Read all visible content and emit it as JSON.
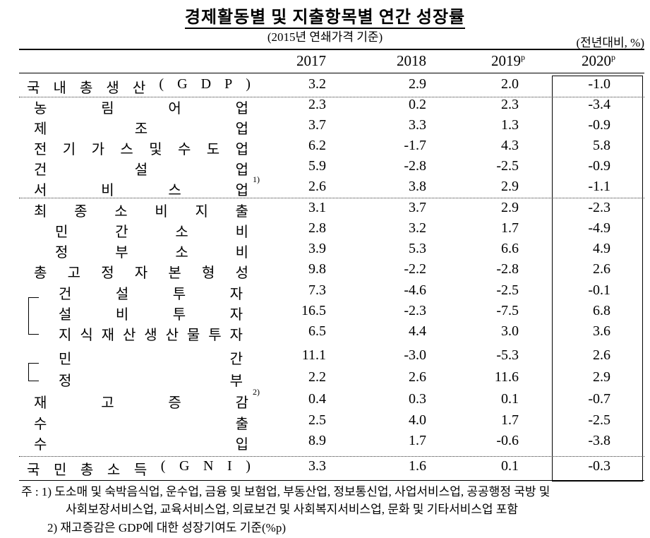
{
  "title": "경제활동별 및 지출항목별 연간 성장률",
  "subtitle": "(2015년 연쇄가격 기준)",
  "unit": "(전년대비, %)",
  "columns": [
    {
      "year": "2017",
      "mark": ""
    },
    {
      "year": "2018",
      "mark": ""
    },
    {
      "year": "2019",
      "mark": "p"
    },
    {
      "year": "2020",
      "mark": "p"
    }
  ],
  "rows": [
    {
      "label": "국내총생산(GDP)",
      "note": "",
      "values": [
        "3.2",
        "2.9",
        "2.0",
        "-1.0"
      ]
    },
    {
      "label": "농림어업",
      "note": "",
      "values": [
        "2.3",
        "0.2",
        "2.3",
        "-3.4"
      ]
    },
    {
      "label": "제조업",
      "note": "",
      "values": [
        "3.7",
        "3.3",
        "1.3",
        "-0.9"
      ]
    },
    {
      "label": "전기가스및수도업",
      "note": "",
      "values": [
        "6.2",
        "-1.7",
        "4.3",
        "5.8"
      ]
    },
    {
      "label": "건설업",
      "note": "",
      "values": [
        "5.9",
        "-2.8",
        "-2.5",
        "-0.9"
      ]
    },
    {
      "label": "서비스업",
      "note": "1)",
      "values": [
        "2.6",
        "3.8",
        "2.9",
        "-1.1"
      ]
    },
    {
      "label": "최종소비지출",
      "note": "",
      "values": [
        "3.1",
        "3.7",
        "2.9",
        "-2.3"
      ]
    },
    {
      "label": "민간소비",
      "note": "",
      "values": [
        "2.8",
        "3.2",
        "1.7",
        "-4.9"
      ]
    },
    {
      "label": "정부소비",
      "note": "",
      "values": [
        "3.9",
        "5.3",
        "6.6",
        "4.9"
      ]
    },
    {
      "label": "총고정자본형성",
      "note": "",
      "values": [
        "9.8",
        "-2.2",
        "-2.8",
        "2.6"
      ]
    },
    {
      "label": "건설투자",
      "note": "",
      "values": [
        "7.3",
        "-4.6",
        "-2.5",
        "-0.1"
      ]
    },
    {
      "label": "설비투자",
      "note": "",
      "values": [
        "16.5",
        "-2.3",
        "-7.5",
        "6.8"
      ]
    },
    {
      "label": "지식재산생산물투자",
      "note": "",
      "values": [
        "6.5",
        "4.4",
        "3.0",
        "3.6"
      ]
    },
    {
      "label": "민간",
      "note": "",
      "values": [
        "11.1",
        "-3.0",
        "-5.3",
        "2.6"
      ]
    },
    {
      "label": "정부",
      "note": "",
      "values": [
        "2.2",
        "2.6",
        "11.6",
        "2.9"
      ]
    },
    {
      "label": "재고증감",
      "note": "2)",
      "values": [
        "0.4",
        "0.3",
        "0.1",
        "-0.7"
      ]
    },
    {
      "label": "수출",
      "note": "",
      "values": [
        "2.5",
        "4.0",
        "1.7",
        "-2.5"
      ]
    },
    {
      "label": "수입",
      "note": "",
      "values": [
        "8.9",
        "1.7",
        "-0.6",
        "-3.8"
      ]
    },
    {
      "label": "국민총소득(GNI)",
      "note": "",
      "values": [
        "3.3",
        "1.6",
        "0.1",
        "-0.3"
      ]
    }
  ],
  "footnotes": {
    "line1": "주 : 1) 도소매 및 숙박음식업, 운수업, 금융 및 보험업, 부동산업, 정보통신업, 사업서비스업, 공공행정 국방 및",
    "line2": "사회보장서비스업, 교육서비스업, 의료보건 및 사회복지서비스업, 문화 및 기타서비스업 포함",
    "line3": "2) 재고증감은 GDP에 대한 성장기여도 기준(%p)"
  }
}
